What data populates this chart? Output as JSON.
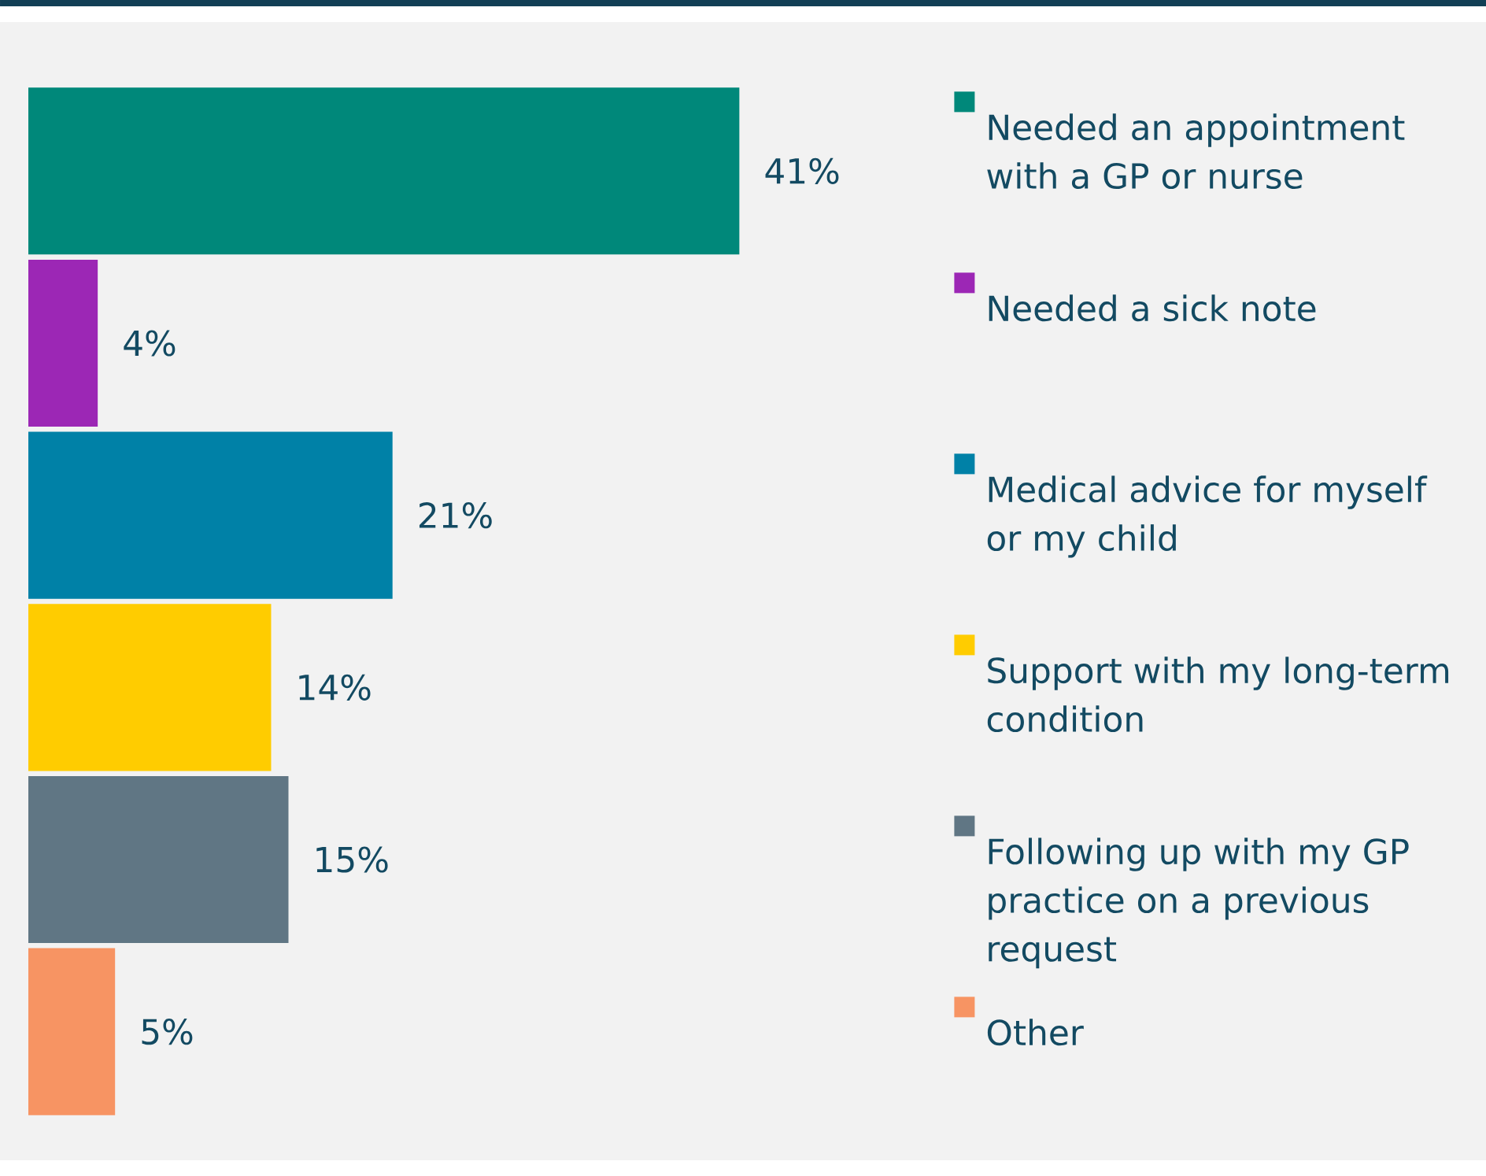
{
  "chart_data": {
    "type": "bar",
    "orientation": "horizontal",
    "categories": [
      "Needed an appointment with a GP or nurse",
      "Needed a sick note",
      "Medical advice for myself or my child",
      "Support with my long-term condition",
      "Following up with my GP practice on a previous request",
      "Other"
    ],
    "values": [
      41,
      4,
      21,
      14,
      15,
      5
    ],
    "colors": [
      "#00887a",
      "#9c27b5",
      "#0081a7",
      "#ffcc00",
      "#607684",
      "#f79463"
    ],
    "value_labels": [
      "41%",
      "4%",
      "21%",
      "14%",
      "15%",
      "5%"
    ]
  }
}
